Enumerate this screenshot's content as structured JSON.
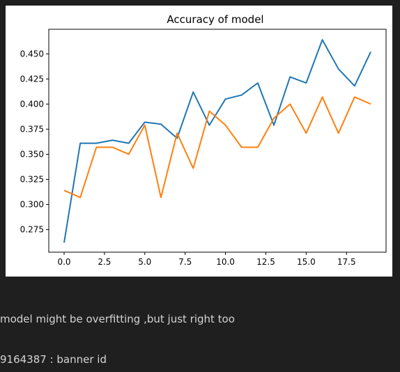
{
  "chart_data": {
    "type": "line",
    "title": "Accuracy of model",
    "xlabel": "",
    "ylabel": "",
    "xlim": [
      -0.95,
      19.95
    ],
    "ylim": [
      0.2525,
      0.4745
    ],
    "xticks": [
      0.0,
      2.5,
      5.0,
      7.5,
      10.0,
      12.5,
      15.0,
      17.5
    ],
    "xtick_labels": [
      "0.0",
      "2.5",
      "5.0",
      "7.5",
      "10.0",
      "12.5",
      "15.0",
      "17.5"
    ],
    "yticks": [
      0.275,
      0.3,
      0.325,
      0.35,
      0.375,
      0.4,
      0.425,
      0.45
    ],
    "ytick_labels": [
      "0.275",
      "0.300",
      "0.325",
      "0.350",
      "0.375",
      "0.400",
      "0.425",
      "0.450"
    ],
    "grid": false,
    "x": [
      0,
      1,
      2,
      3,
      4,
      5,
      6,
      7,
      8,
      9,
      10,
      11,
      12,
      13,
      14,
      15,
      16,
      17,
      18,
      19
    ],
    "series": [
      {
        "color": "#1f77b4",
        "values": [
          0.262,
          0.361,
          0.361,
          0.364,
          0.361,
          0.382,
          0.38,
          0.366,
          0.412,
          0.379,
          0.405,
          0.409,
          0.421,
          0.379,
          0.427,
          0.421,
          0.464,
          0.435,
          0.418,
          0.452
        ]
      },
      {
        "color": "#ff7f0e",
        "values": [
          0.314,
          0.307,
          0.357,
          0.357,
          0.35,
          0.379,
          0.307,
          0.371,
          0.336,
          0.393,
          0.379,
          0.357,
          0.357,
          0.386,
          0.4,
          0.371,
          0.407,
          0.371,
          0.407,
          0.4
        ]
      }
    ]
  },
  "output": {
    "note_1": "model might be overfitting ,but just right too",
    "note_2": "9164387 : banner id"
  }
}
